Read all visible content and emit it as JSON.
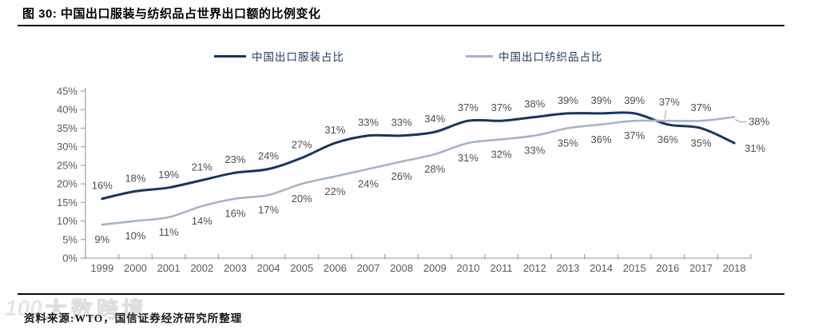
{
  "figure": {
    "title": "图 30: 中国出口服装与纺织品占世界出口额的比例变化",
    "source_note": "资料来源:WTO，国信证券经济研究所整理",
    "watermark_logo": "100",
    "watermark_text": "大数跨境"
  },
  "chart_data": {
    "type": "line",
    "title": "中国出口服装与纺织品占世界出口额的比例变化",
    "x": [
      1999,
      2000,
      2001,
      2002,
      2003,
      2004,
      2005,
      2006,
      2007,
      2008,
      2009,
      2010,
      2011,
      2012,
      2013,
      2014,
      2015,
      2016,
      2017,
      2018
    ],
    "series": [
      {
        "name": "中国出口服装占比",
        "color": "#17365d",
        "line_width": 3,
        "values": [
          16,
          18,
          19,
          21,
          23,
          24,
          27,
          31,
          33,
          33,
          34,
          37,
          37,
          38,
          39,
          39,
          39,
          36,
          35,
          31
        ],
        "label_sides": [
          "up",
          "up",
          "up",
          "up",
          "up",
          "up",
          "up",
          "up",
          "up",
          "up",
          "up",
          "up",
          "up",
          "up",
          "up",
          "up",
          "up",
          "down",
          "down",
          "right"
        ]
      },
      {
        "name": "中国出口纺织品占比",
        "color": "#a6b4c7",
        "line_width": 2.6,
        "values": [
          9,
          10,
          11,
          14,
          16,
          17,
          20,
          22,
          24,
          26,
          28,
          31,
          32,
          33,
          35,
          36,
          37,
          37,
          37,
          38
        ],
        "label_sides": [
          "down",
          "down",
          "down",
          "down",
          "down",
          "down",
          "down",
          "down",
          "down",
          "down",
          "down",
          "down",
          "down",
          "down",
          "down",
          "down",
          "down",
          "up-leader",
          "up",
          "right-leader"
        ]
      }
    ],
    "ylim": [
      0,
      45
    ],
    "yticks": [
      0,
      5,
      10,
      15,
      20,
      25,
      30,
      35,
      40,
      45
    ],
    "ytick_suffix": "%",
    "data_label_suffix": "%",
    "grid": false,
    "smooth": true,
    "legend_position": "top",
    "axis_color": "#a6a6a6",
    "tick_label_color": "#595959",
    "data_label_color": "#4d4d4d"
  }
}
